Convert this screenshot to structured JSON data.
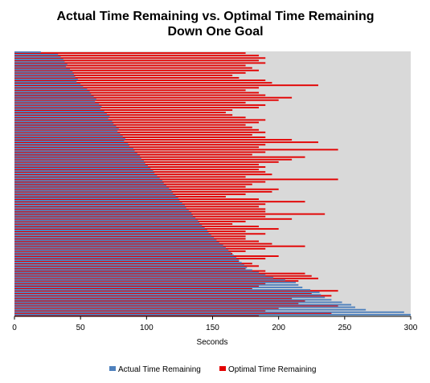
{
  "chart_data": {
    "type": "bar",
    "orientation": "horizontal",
    "title_line1": "Actual Time Remaining vs. Optimal Time Remaining",
    "title_line2": "Down One Goal",
    "xlabel": "Seconds",
    "xlim": [
      0,
      300
    ],
    "x_ticks": [
      "0",
      "50",
      "100",
      "150",
      "200",
      "250",
      "300"
    ],
    "grid": false,
    "plot_background": "#d9d9d9",
    "legend_position": "bottom",
    "series": [
      {
        "name": "Actual Time Remaining",
        "color": "#4f81bd",
        "values": [
          20,
          33,
          35,
          37,
          38,
          40,
          39,
          42,
          44,
          45,
          46,
          48,
          47,
          50,
          52,
          55,
          57,
          58,
          60,
          62,
          61,
          64,
          66,
          65,
          68,
          70,
          72,
          71,
          74,
          75,
          77,
          79,
          78,
          80,
          82,
          84,
          83,
          86,
          87,
          90,
          91,
          93,
          95,
          96,
          98,
          99,
          101,
          103,
          105,
          106,
          108,
          110,
          112,
          113,
          115,
          117,
          119,
          120,
          122,
          124,
          125,
          127,
          129,
          130,
          132,
          134,
          135,
          137,
          139,
          140,
          142,
          144,
          146,
          147,
          149,
          151,
          153,
          155,
          158,
          160,
          162,
          164,
          166,
          168,
          170,
          172,
          174,
          176,
          180,
          185,
          190,
          196,
          205,
          213,
          215,
          218,
          224,
          231,
          232,
          235,
          240,
          248,
          255,
          258,
          266,
          295,
          300
        ]
      },
      {
        "name": "Optimal Time Remaining",
        "color": "#e30000",
        "values": [
          175,
          185,
          190,
          185,
          190,
          175,
          180,
          185,
          175,
          165,
          170,
          190,
          195,
          230,
          185,
          175,
          185,
          190,
          210,
          200,
          175,
          190,
          185,
          165,
          160,
          165,
          175,
          190,
          185,
          175,
          180,
          185,
          190,
          180,
          190,
          210,
          230,
          190,
          185,
          245,
          190,
          180,
          220,
          210,
          200,
          185,
          190,
          185,
          190,
          195,
          175,
          245,
          190,
          180,
          175,
          200,
          195,
          175,
          160,
          185,
          220,
          190,
          185,
          190,
          190,
          235,
          190,
          210,
          175,
          165,
          185,
          200,
          175,
          190,
          175,
          175,
          185,
          195,
          220,
          190,
          175,
          165,
          200,
          190,
          170,
          180,
          185,
          175,
          190,
          220,
          225,
          230,
          215,
          190,
          185,
          180,
          245,
          225,
          240,
          210,
          220,
          215,
          245,
          200,
          190,
          240,
          185
        ]
      }
    ]
  }
}
